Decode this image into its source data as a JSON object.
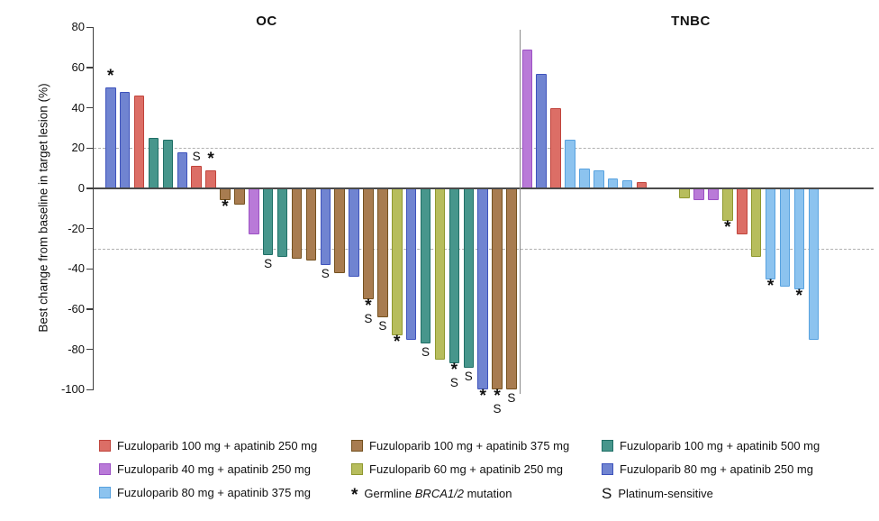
{
  "chart_data": {
    "type": "bar",
    "subtype": "waterfall",
    "ylabel": "Best change from baseline in target lesion (%)",
    "ylim": [
      -100,
      80
    ],
    "yticks": [
      80,
      60,
      40,
      20,
      0,
      -20,
      -40,
      -60,
      -80,
      -100
    ],
    "reference_lines": [
      20,
      -30
    ],
    "grid": "off",
    "marker_meanings": {
      "*": "Germline BRCA1/2 mutation",
      "S": "Platinum-sensitive"
    },
    "panels": [
      {
        "name": "OC",
        "bars": [
          {
            "v": 50,
            "c": "blue",
            "m": "*"
          },
          {
            "v": 48,
            "c": "blue"
          },
          {
            "v": 46,
            "c": "red"
          },
          {
            "v": 25,
            "c": "teal"
          },
          {
            "v": 24,
            "c": "teal"
          },
          {
            "v": 18,
            "c": "blue"
          },
          {
            "v": 11,
            "c": "red",
            "m": "S"
          },
          {
            "v": 9,
            "c": "red",
            "m": "*"
          },
          {
            "v": -6,
            "c": "brown",
            "m": "*"
          },
          {
            "v": -8,
            "c": "brown"
          },
          {
            "v": -23,
            "c": "purple"
          },
          {
            "v": -33,
            "c": "teal",
            "m": "S"
          },
          {
            "v": -34,
            "c": "teal"
          },
          {
            "v": -35,
            "c": "brown"
          },
          {
            "v": -36,
            "c": "brown"
          },
          {
            "v": -38,
            "c": "blue",
            "m": "S"
          },
          {
            "v": -42,
            "c": "brown"
          },
          {
            "v": -44,
            "c": "blue"
          },
          {
            "v": -55,
            "c": "brown",
            "m": "*S"
          },
          {
            "v": -64,
            "c": "brown",
            "m": "S"
          },
          {
            "v": -73,
            "c": "yellow",
            "m": "*"
          },
          {
            "v": -75,
            "c": "blue"
          },
          {
            "v": -77,
            "c": "teal",
            "m": "S"
          },
          {
            "v": -85,
            "c": "yellow"
          },
          {
            "v": -87,
            "c": "teal",
            "m": "*S"
          },
          {
            "v": -89,
            "c": "teal",
            "m": "S"
          },
          {
            "v": -100,
            "c": "blue",
            "m": "*"
          },
          {
            "v": -100,
            "c": "brown",
            "m": "*S"
          },
          {
            "v": -100,
            "c": "brown",
            "m": "S"
          }
        ]
      },
      {
        "name": "TNBC",
        "bars": [
          {
            "v": 69,
            "c": "purple"
          },
          {
            "v": 57,
            "c": "blue"
          },
          {
            "v": 40,
            "c": "red"
          },
          {
            "v": 24,
            "c": "lightblue"
          },
          {
            "v": 10,
            "c": "lightblue"
          },
          {
            "v": 9,
            "c": "lightblue"
          },
          {
            "v": 5,
            "c": "lightblue"
          },
          {
            "v": 4,
            "c": "lightblue"
          },
          {
            "v": 3,
            "c": "red"
          },
          {
            "v": 0,
            "c": null
          },
          {
            "v": 0,
            "c": null
          },
          {
            "v": -5,
            "c": "yellow"
          },
          {
            "v": -6,
            "c": "purple"
          },
          {
            "v": -6,
            "c": "purple"
          },
          {
            "v": -16,
            "c": "yellow",
            "m": "*"
          },
          {
            "v": -23,
            "c": "red"
          },
          {
            "v": -34,
            "c": "yellow"
          },
          {
            "v": -45,
            "c": "lightblue",
            "m": "*"
          },
          {
            "v": -49,
            "c": "lightblue"
          },
          {
            "v": -50,
            "c": "lightblue",
            "m": "*"
          },
          {
            "v": -75,
            "c": "lightblue"
          }
        ]
      }
    ]
  },
  "colors": {
    "red": {
      "fill": "#DC6E66",
      "border": "#C0443C"
    },
    "blue": {
      "fill": "#7084D1",
      "border": "#3E53BC"
    },
    "teal": {
      "fill": "#47968C",
      "border": "#1F6F66"
    },
    "brown": {
      "fill": "#A87C50",
      "border": "#74511F"
    },
    "purple": {
      "fill": "#B97AD8",
      "border": "#9C51C4"
    },
    "yellow": {
      "fill": "#B7BD5D",
      "border": "#8F982F"
    },
    "lightblue": {
      "fill": "#8CC3EF",
      "border": "#58A2DF"
    }
  },
  "legend": {
    "columns": [
      {
        "items": [
          {
            "color": "red",
            "label": "Fuzuloparib 100 mg + apatinib 250 mg"
          },
          {
            "color": "purple",
            "label": "Fuzuloparib 40 mg + apatinib 250 mg"
          },
          {
            "color": "lightblue",
            "label": "Fuzuloparib 80 mg + apatinib 375 mg"
          }
        ]
      },
      {
        "items": [
          {
            "color": "brown",
            "label": "Fuzuloparib 100 mg + apatinib 375 mg"
          },
          {
            "color": "yellow",
            "label": "Fuzuloparib 60 mg + apatinib 250 mg"
          }
        ],
        "note": {
          "marker": "*",
          "prefix": "Germline ",
          "italic": "BRCA1/2",
          "suffix": " mutation"
        }
      },
      {
        "items": [
          {
            "color": "teal",
            "label": "Fuzuloparib 100 mg + apatinib 500 mg"
          },
          {
            "color": "blue",
            "label": "Fuzuloparib 80 mg + apatinib 250 mg"
          }
        ],
        "note": {
          "marker": "S",
          "prefix": "Platinum-sensitive",
          "italic": "",
          "suffix": ""
        }
      }
    ]
  }
}
